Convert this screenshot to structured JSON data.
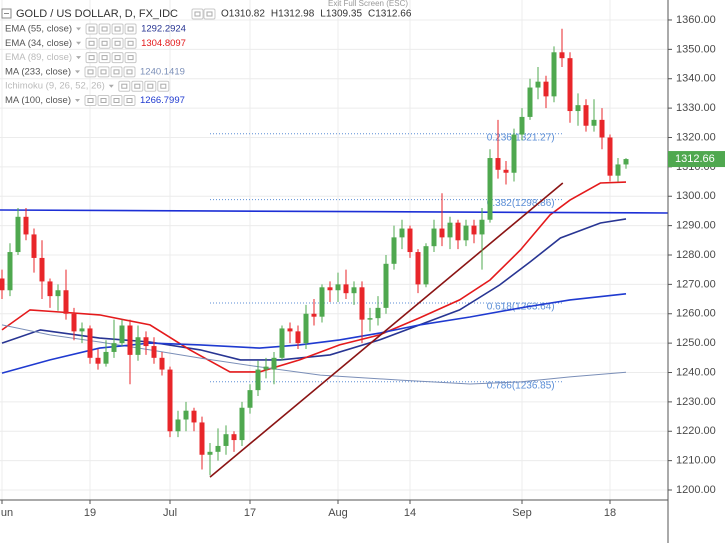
{
  "chart_data": {
    "type": "candlestick",
    "title": "GOLD / US DOLLAR, D, FX_IDC",
    "header_ohlc": [
      "O1310.82",
      "H1312.98",
      "L1309.35",
      "C1312.66"
    ],
    "exit_fullscreen": "Exit Full Screen (ESC)",
    "categories": [
      "un",
      null,
      null,
      null,
      null,
      null,
      null,
      null,
      null,
      null,
      null,
      "19",
      null,
      null,
      null,
      null,
      null,
      null,
      null,
      null,
      null,
      "Jul",
      null,
      null,
      null,
      null,
      null,
      null,
      null,
      null,
      null,
      "17",
      null,
      null,
      null,
      null,
      null,
      null,
      null,
      null,
      null,
      null,
      "Aug",
      null,
      null,
      null,
      null,
      null,
      null,
      null,
      null,
      "14",
      null,
      null,
      null,
      null,
      null,
      null,
      null,
      null,
      null,
      null,
      null,
      null,
      null,
      "Sep",
      null,
      null,
      null,
      null,
      null,
      null,
      null,
      null,
      null,
      null,
      "18",
      null,
      null
    ],
    "open": [
      1272,
      1268,
      1281,
      1293,
      1287,
      1279,
      1271,
      1266,
      1268,
      1260,
      1254,
      1255,
      1245,
      1243,
      1247,
      1250,
      1256,
      1246,
      1252,
      1249,
      1245,
      1241,
      1220,
      1224,
      1227,
      1223,
      1212,
      1213,
      1215,
      1219,
      1217,
      1228,
      1234,
      1241,
      1241,
      1245,
      1255,
      1254,
      1250,
      1260,
      1259,
      1269,
      1268,
      1270,
      1267,
      1269,
      1258,
      1258.5,
      1262,
      1277,
      1286,
      1289,
      1281,
      1270,
      1283,
      1289,
      1286,
      1291,
      1285,
      1290,
      1287,
      1292,
      1313,
      1309,
      1308,
      1321,
      1327,
      1337,
      1339,
      1334,
      1349,
      1347,
      1329,
      1331,
      1324,
      1326,
      1320,
      1307,
      1310.82
    ],
    "high": [
      1275,
      1284,
      1296,
      1296,
      1289,
      1285,
      1272,
      1270,
      1275,
      1262,
      1257,
      1256,
      1248,
      1251,
      1258,
      1258,
      1258,
      1256,
      1254,
      1252,
      1247,
      1242,
      1227,
      1230,
      1228,
      1225,
      1216,
      1221,
      1222,
      1220,
      1230,
      1236,
      1244,
      1245,
      1247,
      1256,
      1257,
      1256,
      1263,
      1265,
      1270,
      1271,
      1274,
      1275,
      1271,
      1271,
      1262,
      1266,
      1280,
      1290,
      1292,
      1290,
      1282,
      1284,
      1292,
      1301,
      1293,
      1292,
      1292,
      1292,
      1296,
      1316,
      1326,
      1312,
      1323,
      1330,
      1340,
      1344,
      1341,
      1351,
      1357,
      1349,
      1335,
      1333,
      1333,
      1330,
      1321,
      1313,
      1312.98
    ],
    "low": [
      1265,
      1266,
      1280,
      1285,
      1274,
      1265,
      1262,
      1261,
      1258,
      1251,
      1250,
      1243,
      1241,
      1242,
      1245,
      1249,
      1236,
      1244,
      1246,
      1243,
      1239,
      1218,
      1218,
      1220,
      1220,
      1207,
      1205,
      1210,
      1212,
      1213,
      1215,
      1226,
      1232,
      1238,
      1236,
      1244,
      1250,
      1248,
      1248,
      1256,
      1257,
      1264,
      1264,
      1265,
      1263,
      1250,
      1254,
      1256,
      1260,
      1275,
      1282,
      1279,
      1267,
      1269,
      1281,
      1283,
      1282,
      1282,
      1283,
      1284,
      1275,
      1291,
      1306,
      1304,
      1305,
      1319,
      1326,
      1333,
      1330,
      1332,
      1344,
      1325,
      1324,
      1322,
      1322,
      1316,
      1305,
      1305,
      1309.35
    ],
    "close": [
      1268,
      1281,
      1293,
      1287,
      1279,
      1271,
      1266,
      1268,
      1260,
      1254,
      1255,
      1245,
      1243,
      1247,
      1250,
      1256,
      1246,
      1252,
      1249,
      1245,
      1241,
      1220,
      1224,
      1227,
      1223,
      1212,
      1213,
      1215,
      1219,
      1217,
      1228,
      1234,
      1241,
      1242,
      1245,
      1255,
      1254,
      1250,
      1260,
      1259,
      1269,
      1268,
      1270,
      1267,
      1269,
      1258,
      1258.5,
      1262,
      1277,
      1286,
      1289,
      1281,
      1270,
      1283,
      1289,
      1286,
      1291,
      1285,
      1290,
      1287,
      1292,
      1313,
      1309,
      1308,
      1321,
      1327,
      1337,
      1339,
      1334,
      1349,
      1347,
      1329,
      1331,
      1324,
      1326,
      1320,
      1307,
      1310.82,
      1312.66
    ],
    "up_color": "#4fa84f",
    "down_color": "#e8262a",
    "xlim": [
      -0.25,
      83.25
    ],
    "ylim": [
      1196.6,
      1366.8
    ],
    "yticks": [
      {
        "value": 1200,
        "label": "1200.00"
      },
      {
        "value": 1210,
        "label": "1210.00"
      },
      {
        "value": 1220,
        "label": "1220.00"
      },
      {
        "value": 1230,
        "label": "1230.00"
      },
      {
        "value": 1240,
        "label": "1240.00"
      },
      {
        "value": 1250,
        "label": "1250.00"
      },
      {
        "value": 1260,
        "label": "1260.00"
      },
      {
        "value": 1270,
        "label": "1270.00"
      },
      {
        "value": 1280,
        "label": "1280.00"
      },
      {
        "value": 1290,
        "label": "1290.00"
      },
      {
        "value": 1300,
        "label": "1300.00"
      },
      {
        "value": 1310,
        "label": "1310.00"
      },
      {
        "value": 1320,
        "label": "1320.00"
      },
      {
        "value": 1330,
        "label": "1330.00"
      },
      {
        "value": 1340,
        "label": "1340.00"
      },
      {
        "value": 1350,
        "label": "1350.00"
      },
      {
        "value": 1360,
        "label": "1360.00"
      }
    ],
    "grid": true,
    "indicators": [
      {
        "name": "EMA (55, close)",
        "color": "#283593",
        "visible": true,
        "last_value": 1292.2924,
        "x": [
          0,
          4.8,
          12.2,
          18.5,
          24.8,
          29.8,
          34.8,
          41,
          47.2,
          52.2,
          57.2,
          62.2,
          66,
          69.8,
          74.8,
          78
        ],
        "values": [
          1250,
          1254.5,
          1251.7,
          1250.4,
          1247.7,
          1244.3,
          1244.3,
          1246,
          1251.1,
          1256.2,
          1261.3,
          1269.8,
          1277.6,
          1285.8,
          1290.9,
          1292.3
        ]
      },
      {
        "name": "EMA (34, close)",
        "color": "#e41a1c",
        "visible": true,
        "last_value": 1304.8097,
        "x": [
          0,
          3.5,
          7.2,
          12.2,
          18.5,
          23.5,
          28.5,
          32.2,
          37.2,
          42.2,
          47.2,
          52.2,
          57.2,
          61,
          64.8,
          68.5,
          71,
          74.8,
          78
        ],
        "values": [
          1254.5,
          1261.3,
          1260.6,
          1259.6,
          1256.2,
          1247.7,
          1240.2,
          1240.2,
          1244.3,
          1249.4,
          1252.8,
          1258.6,
          1264.7,
          1271.5,
          1281.7,
          1293.6,
          1298.7,
          1304.5,
          1304.8
        ]
      },
      {
        "name": "EMA (89, close)",
        "color": "#bbbbbb",
        "visible": false
      },
      {
        "name": "MA (233, close)",
        "color": "#7b8fb8",
        "visible": true,
        "last_value": 1240.1419,
        "x": [
          0,
          6,
          12.2,
          18.5,
          24.8,
          32.2,
          39.8,
          49.8,
          58.5,
          64.8,
          71,
          78
        ],
        "values": [
          1256.2,
          1252.8,
          1250.4,
          1247.7,
          1244.9,
          1241.9,
          1239.1,
          1237.4,
          1236.1,
          1236.8,
          1238.5,
          1240.1
        ]
      },
      {
        "name": "Ichimoku (9, 26, 52, 26)",
        "color": "#bbbbbb",
        "visible": false
      },
      {
        "name": "MA (100, close)",
        "color": "#1f3ad0",
        "visible": true,
        "last_value": 1266.7997,
        "x": [
          0,
          6,
          12.2,
          18.5,
          24.8,
          32.2,
          37.2,
          42.2,
          47.2,
          52.2,
          58.5,
          64.8,
          71,
          78
        ],
        "values": [
          1239.8,
          1244.3,
          1248.3,
          1250,
          1249.4,
          1248.3,
          1249.4,
          1251.1,
          1253.4,
          1256.2,
          1258.9,
          1262,
          1264.7,
          1266.8
        ]
      }
    ],
    "lines": [
      {
        "color": "#1c2fd6",
        "x": [
          -0.25,
          83.25
        ],
        "values": [
          1295.3,
          1294.3
        ]
      },
      {
        "color": "#8b1414",
        "x": [
          26,
          70.1
        ],
        "values": [
          1204.4,
          1304.5
        ]
      }
    ],
    "fibonacci": {
      "color": "#5b8ed6",
      "x": [
        26,
        70
      ],
      "label_x": 60.6,
      "levels": [
        {
          "label": "0.236(1321.27)",
          "value": 1321.27
        },
        {
          "label": "0.382(1298.86)",
          "value": 1298.86
        },
        {
          "label": "0.618(1263.64)",
          "value": 1263.64
        },
        {
          "label": "0.786(1236.85)",
          "value": 1236.85
        }
      ]
    }
  }
}
